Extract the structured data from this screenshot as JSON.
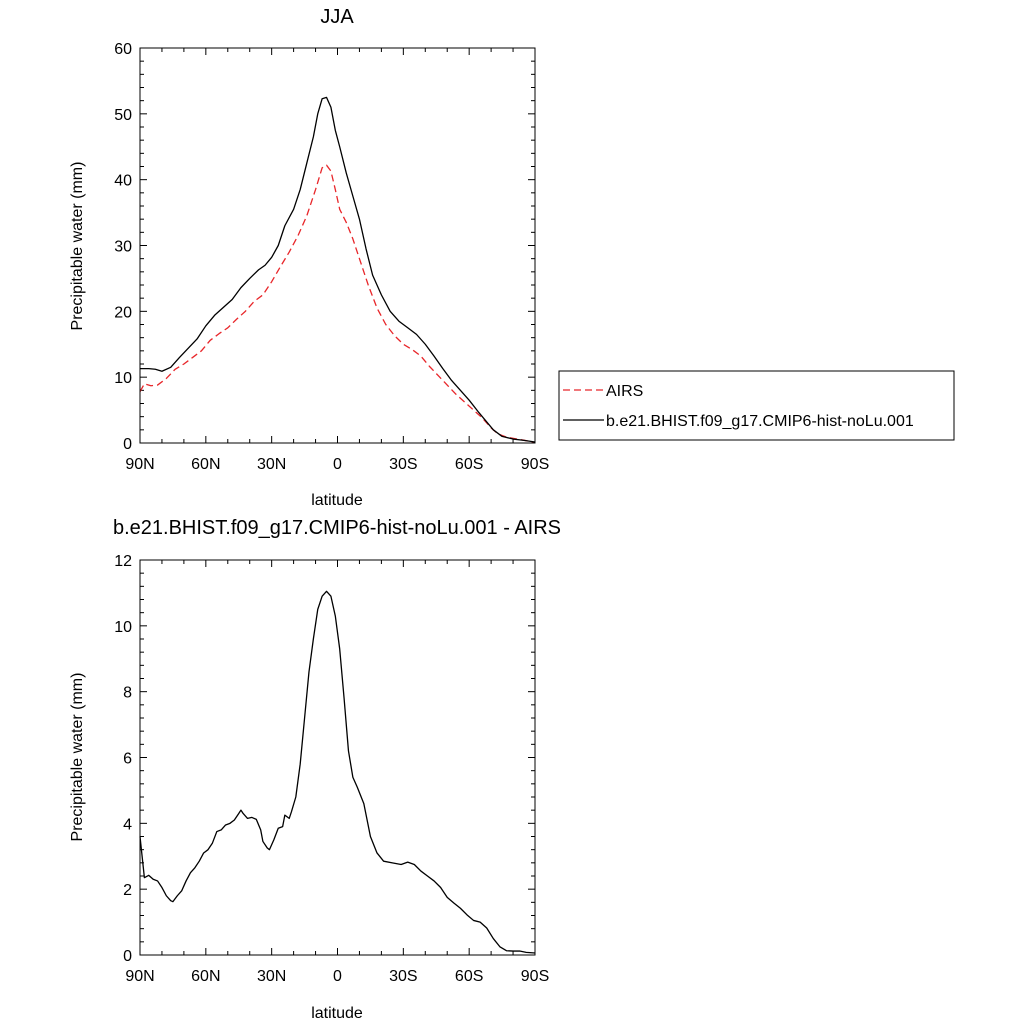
{
  "chart_data": [
    {
      "type": "line",
      "title": "JJA",
      "xlabel": "latitude",
      "ylabel": "Precipitable water (mm)",
      "xlim": [
        90,
        -90
      ],
      "ylim": [
        0,
        60
      ],
      "x_ticks": [
        90,
        60,
        30,
        0,
        -30,
        -60,
        -90
      ],
      "x_tick_labels": [
        "90N",
        "60N",
        "30N",
        "0",
        "30S",
        "60S",
        "90S"
      ],
      "y_ticks": [
        0,
        10,
        20,
        30,
        40,
        50,
        60
      ],
      "y_tick_labels": [
        "0",
        "10",
        "20",
        "30",
        "40",
        "50",
        "60"
      ],
      "legend_position": "right",
      "grid": false,
      "series": [
        {
          "name": "AIRS",
          "color": "#e8262a",
          "dash": "dashed",
          "points": [
            [
              90,
              7.8
            ],
            [
              88,
              9.0
            ],
            [
              85,
              8.7
            ],
            [
              82,
              8.8
            ],
            [
              78,
              9.8
            ],
            [
              74,
              11.2
            ],
            [
              70,
              12.0
            ],
            [
              66,
              13.0
            ],
            [
              62,
              14.0
            ],
            [
              58,
              15.6
            ],
            [
              54,
              16.6
            ],
            [
              50,
              17.5
            ],
            [
              46,
              18.8
            ],
            [
              42,
              20.0
            ],
            [
              38,
              21.5
            ],
            [
              34,
              22.5
            ],
            [
              30,
              24.5
            ],
            [
              26,
              26.8
            ],
            [
              22,
              29.0
            ],
            [
              18,
              31.5
            ],
            [
              14,
              34.5
            ],
            [
              10,
              38.5
            ],
            [
              7,
              41.8
            ],
            [
              5,
              42.2
            ],
            [
              3,
              41.3
            ],
            [
              1,
              38.5
            ],
            [
              -1,
              35.5
            ],
            [
              -4,
              33.5
            ],
            [
              -7,
              31.0
            ],
            [
              -10,
              28.0
            ],
            [
              -14,
              24.0
            ],
            [
              -18,
              20.5
            ],
            [
              -22,
              18.0
            ],
            [
              -26,
              16.3
            ],
            [
              -30,
              15.0
            ],
            [
              -34,
              14.2
            ],
            [
              -38,
              13.2
            ],
            [
              -42,
              11.6
            ],
            [
              -46,
              10.2
            ],
            [
              -50,
              8.8
            ],
            [
              -54,
              7.4
            ],
            [
              -58,
              6.2
            ],
            [
              -62,
              5.0
            ],
            [
              -66,
              3.8
            ],
            [
              -70,
              2.3
            ],
            [
              -73,
              1.4
            ],
            [
              -77,
              0.9
            ],
            [
              -82,
              0.6
            ],
            [
              -86,
              0.35
            ],
            [
              -90,
              0.1
            ]
          ]
        },
        {
          "name": "b.e21.BHIST.f09_g17.CMIP6-hist-noLu.001",
          "color": "#000000",
          "dash": "solid",
          "points": [
            [
              90,
              11.3
            ],
            [
              86,
              11.3
            ],
            [
              83,
              11.2
            ],
            [
              80,
              10.9
            ],
            [
              76,
              11.5
            ],
            [
              72,
              13.0
            ],
            [
              68,
              14.4
            ],
            [
              64,
              15.8
            ],
            [
              60,
              17.8
            ],
            [
              56,
              19.4
            ],
            [
              52,
              20.6
            ],
            [
              48,
              21.8
            ],
            [
              44,
              23.6
            ],
            [
              40,
              25.0
            ],
            [
              36,
              26.3
            ],
            [
              33,
              27.0
            ],
            [
              30,
              28.2
            ],
            [
              27,
              30.0
            ],
            [
              24,
              33.0
            ],
            [
              20,
              35.5
            ],
            [
              17,
              38.5
            ],
            [
              14,
              42.5
            ],
            [
              11,
              46.5
            ],
            [
              9,
              50.0
            ],
            [
              7,
              52.3
            ],
            [
              5,
              52.5
            ],
            [
              3,
              51.0
            ],
            [
              1,
              47.5
            ],
            [
              -1,
              45.0
            ],
            [
              -4,
              41.0
            ],
            [
              -7,
              37.5
            ],
            [
              -10,
              34.0
            ],
            [
              -13,
              29.5
            ],
            [
              -16,
              25.5
            ],
            [
              -20,
              22.5
            ],
            [
              -24,
              20.0
            ],
            [
              -28,
              18.5
            ],
            [
              -32,
              17.5
            ],
            [
              -36,
              16.5
            ],
            [
              -40,
              15.0
            ],
            [
              -44,
              13.2
            ],
            [
              -48,
              11.3
            ],
            [
              -52,
              9.5
            ],
            [
              -56,
              8.0
            ],
            [
              -60,
              6.5
            ],
            [
              -64,
              4.8
            ],
            [
              -68,
              3.2
            ],
            [
              -71,
              2.0
            ],
            [
              -75,
              1.0
            ],
            [
              -80,
              0.6
            ],
            [
              -85,
              0.4
            ],
            [
              -90,
              0.15
            ]
          ]
        }
      ]
    },
    {
      "type": "line",
      "title": "b.e21.BHIST.f09_g17.CMIP6-hist-noLu.001 - AIRS",
      "xlabel": "latitude",
      "ylabel": "Precipitable water (mm)",
      "xlim": [
        90,
        -90
      ],
      "ylim": [
        0,
        12
      ],
      "x_ticks": [
        90,
        60,
        30,
        0,
        -30,
        -60,
        -90
      ],
      "x_tick_labels": [
        "90N",
        "60N",
        "30N",
        "0",
        "30S",
        "60S",
        "90S"
      ],
      "y_ticks": [
        0,
        2,
        4,
        6,
        8,
        10,
        12
      ],
      "y_tick_labels": [
        "0",
        "2",
        "4",
        "6",
        "8",
        "10",
        "12"
      ],
      "grid": false,
      "series": [
        {
          "color": "#000000",
          "dash": "solid",
          "points": [
            [
              90,
              3.6
            ],
            [
              88,
              2.35
            ],
            [
              86,
              2.42
            ],
            [
              84,
              2.3
            ],
            [
              82,
              2.25
            ],
            [
              80,
              2.05
            ],
            [
              78,
              1.8
            ],
            [
              76,
              1.65
            ],
            [
              75,
              1.62
            ],
            [
              73,
              1.8
            ],
            [
              71,
              1.95
            ],
            [
              69,
              2.25
            ],
            [
              67,
              2.5
            ],
            [
              65,
              2.65
            ],
            [
              63,
              2.85
            ],
            [
              61,
              3.1
            ],
            [
              59,
              3.2
            ],
            [
              57,
              3.4
            ],
            [
              55,
              3.75
            ],
            [
              53,
              3.8
            ],
            [
              51,
              3.95
            ],
            [
              49,
              4.0
            ],
            [
              47,
              4.1
            ],
            [
              45,
              4.3
            ],
            [
              44,
              4.4
            ],
            [
              43,
              4.3
            ],
            [
              41,
              4.15
            ],
            [
              39,
              4.18
            ],
            [
              37,
              4.12
            ],
            [
              35,
              3.8
            ],
            [
              34,
              3.45
            ],
            [
              32,
              3.25
            ],
            [
              31,
              3.2
            ],
            [
              29,
              3.5
            ],
            [
              27,
              3.85
            ],
            [
              25,
              3.9
            ],
            [
              24,
              4.25
            ],
            [
              22,
              4.15
            ],
            [
              21,
              4.35
            ],
            [
              19,
              4.8
            ],
            [
              17,
              5.8
            ],
            [
              15,
              7.2
            ],
            [
              13,
              8.6
            ],
            [
              11,
              9.6
            ],
            [
              9,
              10.5
            ],
            [
              7,
              10.9
            ],
            [
              5,
              11.05
            ],
            [
              3,
              10.9
            ],
            [
              1,
              10.3
            ],
            [
              -1,
              9.3
            ],
            [
              -3,
              7.8
            ],
            [
              -5,
              6.2
            ],
            [
              -7,
              5.4
            ],
            [
              -9,
              5.1
            ],
            [
              -12,
              4.6
            ],
            [
              -15,
              3.6
            ],
            [
              -18,
              3.1
            ],
            [
              -21,
              2.85
            ],
            [
              -25,
              2.8
            ],
            [
              -29,
              2.75
            ],
            [
              -32,
              2.82
            ],
            [
              -35,
              2.75
            ],
            [
              -38,
              2.55
            ],
            [
              -41,
              2.4
            ],
            [
              -44,
              2.25
            ],
            [
              -47,
              2.05
            ],
            [
              -50,
              1.75
            ],
            [
              -53,
              1.58
            ],
            [
              -56,
              1.42
            ],
            [
              -59,
              1.22
            ],
            [
              -62,
              1.05
            ],
            [
              -65,
              1.0
            ],
            [
              -68,
              0.82
            ],
            [
              -71,
              0.5
            ],
            [
              -74,
              0.25
            ],
            [
              -77,
              0.13
            ],
            [
              -80,
              0.12
            ],
            [
              -83,
              0.12
            ],
            [
              -86,
              0.08
            ],
            [
              -90,
              0.06
            ]
          ]
        }
      ]
    }
  ]
}
